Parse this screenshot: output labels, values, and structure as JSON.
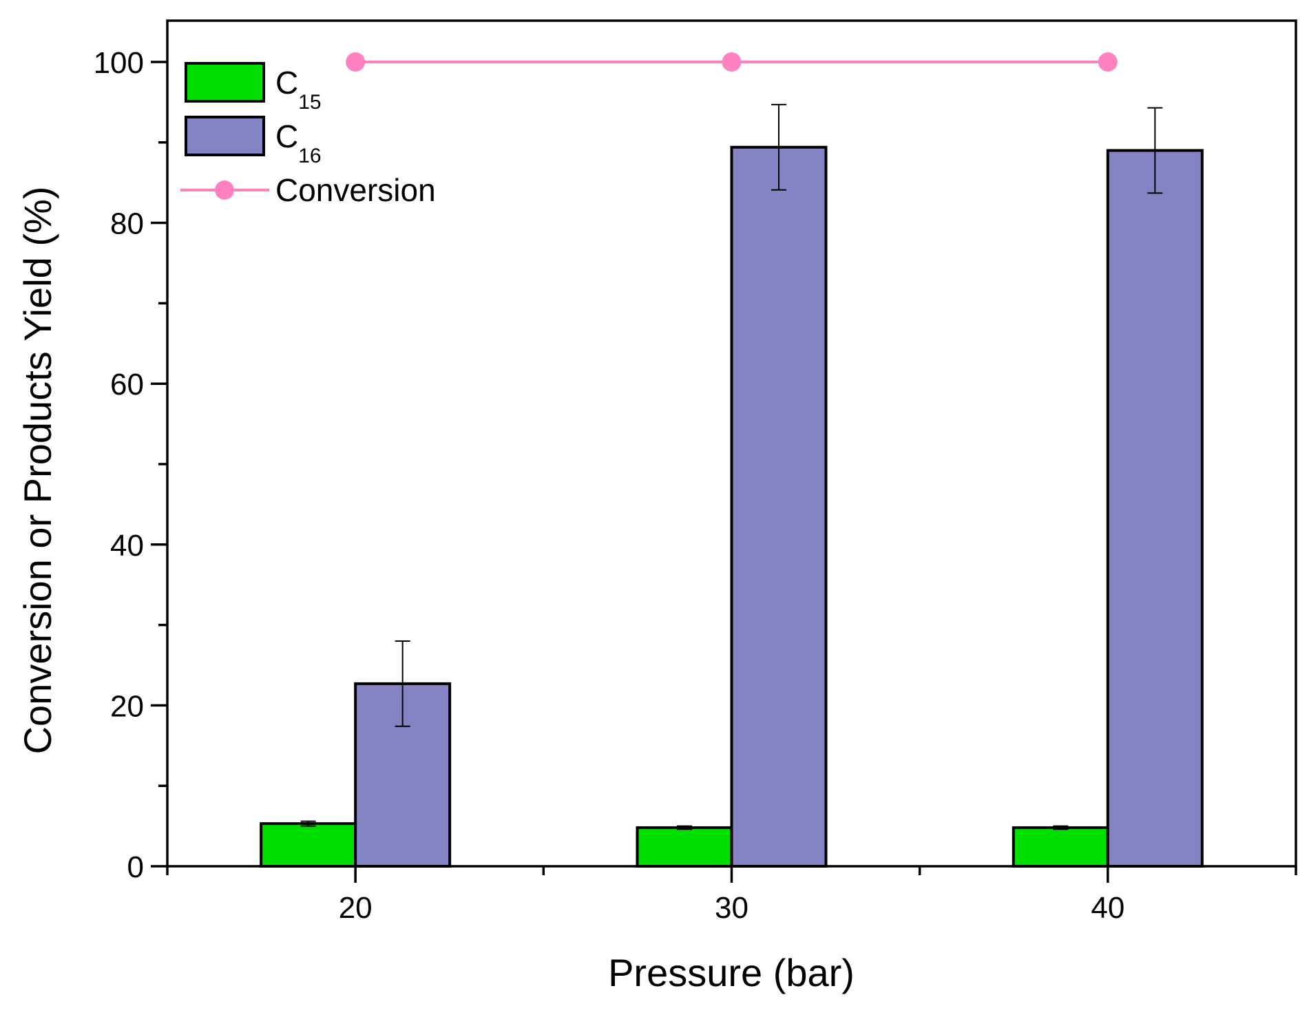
{
  "chart_data": {
    "type": "bar",
    "title": "",
    "xlabel": "Pressure (bar)",
    "ylabel": "Conversion or Products Yield (%)",
    "categories": [
      "20",
      "30",
      "40"
    ],
    "x_values": [
      20,
      30,
      40
    ],
    "xlim": [
      15,
      45
    ],
    "ylim": [
      0,
      100
    ],
    "y_major_ticks": [
      0,
      20,
      40,
      60,
      80,
      100
    ],
    "y_tick_labels": [
      "0",
      "20",
      "40",
      "60",
      "80",
      "100"
    ],
    "y_minor_ticks": [
      10,
      30,
      50,
      70,
      90
    ],
    "x_tick_labels": [
      "20",
      "30",
      "40"
    ],
    "x_minor_ticks": [
      25,
      35
    ],
    "grid": false,
    "legend_position": "top-left",
    "series": [
      {
        "name": "C15",
        "label_main": "C",
        "label_sub": "15",
        "kind": "bar",
        "color": "#00e000",
        "values": [
          5.3,
          4.8,
          4.8
        ],
        "errors": [
          0.3,
          0.2,
          0.2
        ]
      },
      {
        "name": "C16",
        "label_main": "C",
        "label_sub": "16",
        "kind": "bar",
        "color": "#8484c4",
        "values": [
          22.7,
          89.4,
          89.0
        ],
        "errors": [
          5.3,
          5.3,
          5.3
        ]
      },
      {
        "name": "Conversion",
        "label_main": "Conversion",
        "label_sub": "",
        "kind": "line",
        "color": "#ff82c0",
        "values": [
          100,
          100,
          100
        ]
      }
    ]
  }
}
